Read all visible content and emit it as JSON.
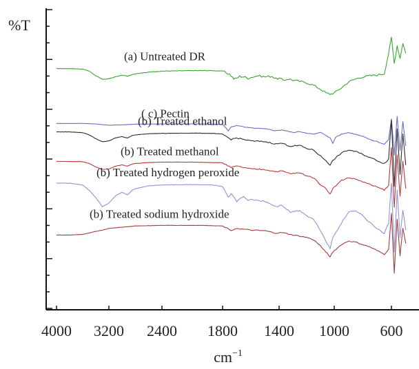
{
  "chart_data": {
    "type": "line",
    "title": "",
    "ylabel": "%T",
    "xlabel": "cm",
    "xlabel_superscript": "−1",
    "x_ticks": [
      4000,
      3200,
      2400,
      1800,
      1400,
      1000,
      600
    ],
    "y_ticks_visible": false,
    "grid": false,
    "legend": "inline labels above each trace",
    "series": [
      {
        "name": "(a)  Untreated DR",
        "color": "#3aa631",
        "offset": 0.715,
        "amp": 0.085,
        "x": [
          4000,
          3800,
          3600,
          3500,
          3400,
          3300,
          3200,
          3100,
          3000,
          2950,
          2920,
          2850,
          2800,
          2600,
          2400,
          2100,
          1900,
          1800,
          1750,
          1720,
          1700,
          1680,
          1650,
          1620,
          1600,
          1550,
          1500,
          1450,
          1420,
          1400,
          1370,
          1330,
          1300,
          1250,
          1200,
          1150,
          1100,
          1060,
          1030,
          1000,
          950,
          900,
          850,
          800,
          750,
          700,
          650,
          620,
          600,
          580,
          560,
          540,
          520,
          500
        ],
        "y": [
          1.0,
          1.0,
          0.98,
          0.9,
          0.72,
          0.58,
          0.6,
          0.68,
          0.74,
          0.72,
          0.7,
          0.76,
          0.8,
          0.86,
          0.9,
          0.92,
          0.92,
          0.9,
          0.78,
          0.6,
          0.62,
          0.7,
          0.68,
          0.62,
          0.66,
          0.72,
          0.68,
          0.7,
          0.6,
          0.62,
          0.55,
          0.6,
          0.55,
          0.5,
          0.45,
          0.35,
          0.2,
          0.05,
          0.0,
          0.05,
          0.25,
          0.48,
          0.6,
          0.68,
          0.72,
          0.75,
          0.8,
          1.6,
          2.2,
          1.2,
          1.9,
          1.4,
          2.0,
          1.6
        ]
      },
      {
        "name": "( c)  Pectin",
        "color": "#6a6fc8",
        "offset": 0.588,
        "amp": 0.03,
        "x": [
          4000,
          3600,
          3400,
          3200,
          3000,
          2800,
          2400,
          2000,
          1800,
          1760,
          1740,
          1700,
          1650,
          1600,
          1500,
          1420,
          1380,
          1300,
          1250,
          1150,
          1100,
          1060,
          1030,
          1010,
          990,
          950,
          900,
          850,
          800,
          750,
          700,
          650,
          620,
          600,
          580,
          560,
          540,
          520,
          500
        ],
        "y": [
          1.0,
          1.0,
          0.95,
          0.8,
          0.85,
          0.92,
          0.95,
          0.95,
          0.9,
          0.2,
          0.6,
          0.8,
          0.6,
          0.5,
          0.4,
          0.2,
          0.3,
          0.0,
          0.1,
          -0.2,
          0.0,
          -0.3,
          -0.6,
          -1.2,
          -0.5,
          -0.2,
          0.0,
          -0.2,
          -0.4,
          -0.8,
          -1.0,
          -1.3,
          -0.8,
          1.5,
          -2.5,
          1.8,
          -2.0,
          1.2,
          -1.5
        ]
      },
      {
        "name": "(b)  Treated ethanol",
        "color": "#2b2b2b",
        "offset": 0.54,
        "amp": 0.05,
        "x": [
          4000,
          3800,
          3600,
          3500,
          3400,
          3300,
          3200,
          3100,
          3000,
          2950,
          2920,
          2850,
          2800,
          2600,
          2400,
          2100,
          1900,
          1800,
          1740,
          1700,
          1650,
          1600,
          1500,
          1420,
          1380,
          1320,
          1250,
          1200,
          1150,
          1100,
          1060,
          1030,
          1010,
          950,
          900,
          850,
          800,
          750,
          700,
          650,
          620,
          600,
          580,
          560,
          540,
          520,
          500
        ],
        "y": [
          1.0,
          1.0,
          0.95,
          0.8,
          0.55,
          0.35,
          0.4,
          0.6,
          0.7,
          0.62,
          0.6,
          0.75,
          0.8,
          0.88,
          0.9,
          0.92,
          0.9,
          0.85,
          0.5,
          0.6,
          0.5,
          0.4,
          0.35,
          0.2,
          0.25,
          0.05,
          0.1,
          -0.1,
          -0.2,
          -0.6,
          -0.9,
          -1.2,
          -0.9,
          -0.4,
          -0.2,
          -0.3,
          -0.5,
          -0.7,
          -0.9,
          -1.1,
          -0.8,
          1.8,
          -2.6,
          1.2,
          -1.8,
          0.9,
          -1.2
        ]
      },
      {
        "name": "(b)  Treated methanol",
        "color": "#b83a3a",
        "offset": 0.447,
        "amp": 0.045,
        "x": [
          4000,
          3800,
          3600,
          3500,
          3400,
          3300,
          3200,
          3100,
          3000,
          2950,
          2920,
          2850,
          2800,
          2600,
          2400,
          2100,
          1900,
          1800,
          1740,
          1700,
          1650,
          1600,
          1500,
          1420,
          1380,
          1320,
          1250,
          1200,
          1150,
          1100,
          1060,
          1030,
          1010,
          950,
          900,
          850,
          800,
          750,
          700,
          650,
          620,
          600,
          580,
          560,
          540,
          520,
          500
        ],
        "y": [
          1.0,
          1.0,
          0.98,
          0.85,
          0.6,
          0.4,
          0.45,
          0.65,
          0.75,
          0.68,
          0.66,
          0.8,
          0.85,
          0.92,
          0.95,
          0.95,
          0.92,
          0.9,
          0.55,
          0.65,
          0.55,
          0.45,
          0.4,
          0.25,
          0.3,
          0.1,
          0.15,
          -0.05,
          -0.2,
          -0.7,
          -1.0,
          -1.4,
          -1.0,
          -0.4,
          -0.2,
          -0.3,
          -0.5,
          -0.7,
          -0.9,
          -1.1,
          -0.8,
          2.0,
          -2.4,
          1.5,
          -1.6,
          1.0,
          -1.0
        ]
      },
      {
        "name": "(b)  Treated hydrogen peroxide",
        "color": "#8f93d8",
        "offset": 0.36,
        "amp": 0.06,
        "x": [
          4000,
          3800,
          3600,
          3500,
          3400,
          3300,
          3200,
          3100,
          3000,
          2950,
          2920,
          2850,
          2800,
          2600,
          2400,
          2100,
          1900,
          1800,
          1760,
          1740,
          1700,
          1650,
          1620,
          1600,
          1500,
          1420,
          1380,
          1320,
          1250,
          1200,
          1150,
          1100,
          1060,
          1030,
          1010,
          950,
          900,
          850,
          800,
          750,
          700,
          650,
          620,
          600,
          580,
          560,
          540,
          520,
          500
        ],
        "y": [
          1.0,
          1.0,
          0.9,
          0.6,
          0.2,
          -0.3,
          -0.1,
          0.3,
          0.5,
          0.4,
          0.35,
          0.6,
          0.7,
          0.85,
          0.9,
          0.92,
          0.9,
          0.8,
          0.2,
          0.4,
          0.0,
          0.3,
          0.0,
          0.1,
          0.0,
          -0.3,
          -0.2,
          -0.6,
          -0.5,
          -0.8,
          -1.0,
          -1.6,
          -2.2,
          -2.6,
          -2.0,
          -1.2,
          -0.6,
          -0.5,
          -0.8,
          -1.2,
          -1.5,
          -1.8,
          -1.2,
          1.0,
          -2.8,
          0.6,
          -2.0,
          -0.5,
          -1.6
        ]
      },
      {
        "name": "(b)  Treated sodium hydroxide",
        "color": "#a33b3b",
        "offset": 0.24,
        "amp": 0.04,
        "x": [
          4000,
          3800,
          3600,
          3400,
          3300,
          3200,
          3000,
          2800,
          2400,
          2000,
          1800,
          1740,
          1700,
          1600,
          1500,
          1420,
          1380,
          1300,
          1200,
          1150,
          1100,
          1060,
          1030,
          1010,
          950,
          900,
          850,
          800,
          750,
          700,
          650,
          620,
          600,
          580,
          560,
          540,
          520,
          500
        ],
        "y": [
          0.2,
          0.2,
          0.25,
          0.5,
          0.6,
          0.75,
          0.85,
          0.95,
          1.0,
          1.0,
          0.95,
          0.6,
          0.75,
          0.6,
          0.55,
          0.35,
          0.4,
          0.2,
          0.0,
          -0.2,
          -0.7,
          -1.2,
          -1.6,
          -1.2,
          -0.6,
          -0.3,
          -0.4,
          -0.6,
          -0.8,
          -1.1,
          -1.4,
          -1.0,
          2.0,
          -3.0,
          1.5,
          -1.5,
          0.8,
          -0.5
        ]
      }
    ]
  }
}
